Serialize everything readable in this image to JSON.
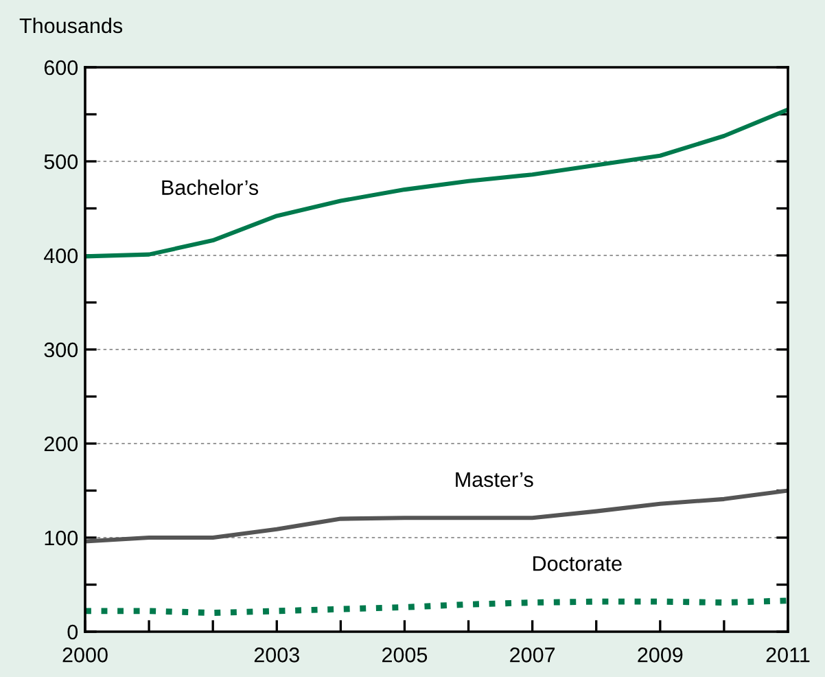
{
  "chart_data": {
    "type": "line",
    "ylabel": "Thousands",
    "x": [
      2000,
      2001,
      2002,
      2003,
      2004,
      2005,
      2006,
      2007,
      2008,
      2009,
      2010,
      2011
    ],
    "series": [
      {
        "name": "Bachelor’s",
        "color": "#007a4d",
        "values": [
          399,
          401,
          416,
          442,
          458,
          470,
          479,
          486,
          496,
          506,
          527,
          555
        ]
      },
      {
        "name": "Master’s",
        "color": "#555555",
        "values": [
          96,
          100,
          100,
          109,
          120,
          121,
          121,
          121,
          128,
          136,
          141,
          150
        ]
      },
      {
        "name": "Doctorate",
        "color": "#007a4d",
        "line_style": "dotted",
        "values": [
          22,
          22,
          20,
          22,
          24,
          26,
          29,
          31,
          32,
          32,
          31,
          33
        ]
      }
    ],
    "xlim": [
      2000,
      2011
    ],
    "xticks": [
      2000,
      {
        "value": 2001,
        "label": null
      },
      {
        "value": 2002,
        "label": null
      },
      2003,
      {
        "value": 2004,
        "label": null
      },
      2005,
      {
        "value": 2006,
        "label": null
      },
      2007,
      {
        "value": 2008,
        "label": null
      },
      2009,
      {
        "value": 2010,
        "label": null
      },
      2011
    ],
    "ylim": [
      0,
      600
    ],
    "yticks": [
      0,
      {
        "value": 50,
        "label": null
      },
      100,
      {
        "value": 150,
        "label": null
      },
      200,
      {
        "value": 250,
        "label": null
      },
      300,
      {
        "value": 350,
        "label": null
      },
      400,
      {
        "value": 450,
        "label": null
      },
      500,
      {
        "value": 550,
        "label": null
      },
      600
    ],
    "grid": "y",
    "legend": false,
    "line_style": "solid",
    "marker": "none"
  }
}
